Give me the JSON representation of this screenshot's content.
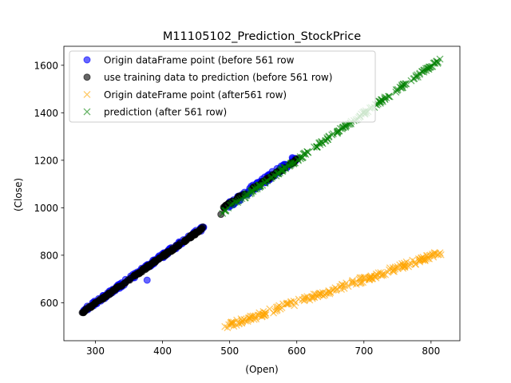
{
  "chart_data": {
    "type": "scatter",
    "title": "M11105102_Prediction_StockPrice",
    "xlabel": "(Open)",
    "ylabel": "(Close)",
    "xlim": [
      253,
      843
    ],
    "ylim": [
      440,
      1680
    ],
    "xticks": [
      300,
      400,
      500,
      600,
      700,
      800
    ],
    "yticks": [
      600,
      800,
      1000,
      1200,
      1400,
      1600
    ],
    "grid": false,
    "legend_position": "upper-left",
    "series": [
      {
        "name": "Origin dataFrame point (before 561 row",
        "marker": "circle",
        "color": "#0000ff",
        "segments": [
          {
            "x0": 280,
            "y0": 560,
            "x1": 462,
            "y1": 920,
            "n": 170,
            "jitter": 10
          },
          {
            "x0": 498,
            "y0": 1010,
            "x1": 602,
            "y1": 1215,
            "n": 90,
            "jitter": 14
          }
        ],
        "outliers": [
          [
            377,
            695
          ],
          [
            500,
            1025
          ],
          [
            510,
            1030
          ]
        ]
      },
      {
        "name": "use training data to prediction (before 561 row)",
        "marker": "circle",
        "color": "#000000",
        "segments": [
          {
            "x0": 280,
            "y0": 558,
            "x1": 462,
            "y1": 918,
            "n": 170,
            "jitter": 5
          },
          {
            "x0": 490,
            "y0": 1000,
            "x1": 602,
            "y1": 1205,
            "n": 60,
            "jitter": 5
          }
        ],
        "outliers": [
          [
            487,
            972
          ]
        ]
      },
      {
        "name": "Origin dateFrame point (after561 row)",
        "marker": "x",
        "color": "#ffa500",
        "segments": [
          {
            "x0": 492,
            "y0": 498,
            "x1": 815,
            "y1": 810,
            "n": 220,
            "jitter": 12
          }
        ],
        "outliers": []
      },
      {
        "name": "prediction (after 561 row)",
        "marker": "x",
        "color": "#008000",
        "segments": [
          {
            "x0": 488,
            "y0": 980,
            "x1": 815,
            "y1": 1625,
            "n": 220,
            "jitter": 7
          }
        ],
        "outliers": []
      }
    ]
  }
}
